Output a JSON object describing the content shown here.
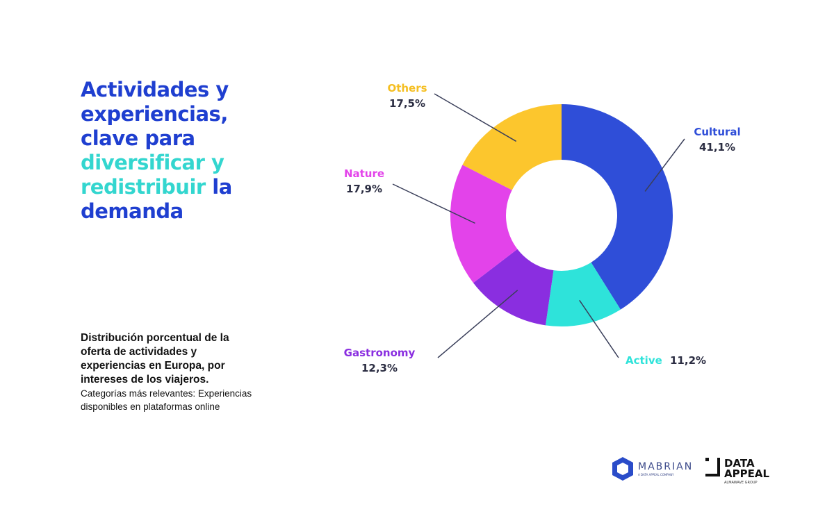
{
  "title": {
    "part1": "Actividades y experiencias, clave para",
    "highlight1": "diversificar y",
    "highlight2": "redistribuir",
    "part2": "la",
    "part3": "demanda"
  },
  "description": {
    "bold": "Distribución porcentual de la oferta de actividades y experiencias en Europa, por intereses de los viajeros.",
    "normal": "Categorías más relevantes: Experiencias disponibles en plataformas online"
  },
  "logos": {
    "mabrian": "MABRIAN",
    "mabrian_sub": "A DATA APPEAL COMPANY",
    "dataappeal_1": "DATA",
    "dataappeal_2": "APPEAL",
    "dataappeal_sub": "ALMAWAVE GROUP"
  },
  "chart_data": {
    "type": "pie",
    "donut": true,
    "start": "top, clockwise",
    "categories": [
      "Cultural",
      "Active",
      "Gastronomy",
      "Nature",
      "Others"
    ],
    "values": [
      41.1,
      11.2,
      12.3,
      17.9,
      17.5
    ],
    "value_labels": [
      "41,1%",
      "11,2%",
      "12,3%",
      "17,9%",
      "17,5%"
    ],
    "colors": [
      "#2f4ed8",
      "#2ee3da",
      "#8a2ee0",
      "#e343ea",
      "#fcc62d"
    ]
  }
}
